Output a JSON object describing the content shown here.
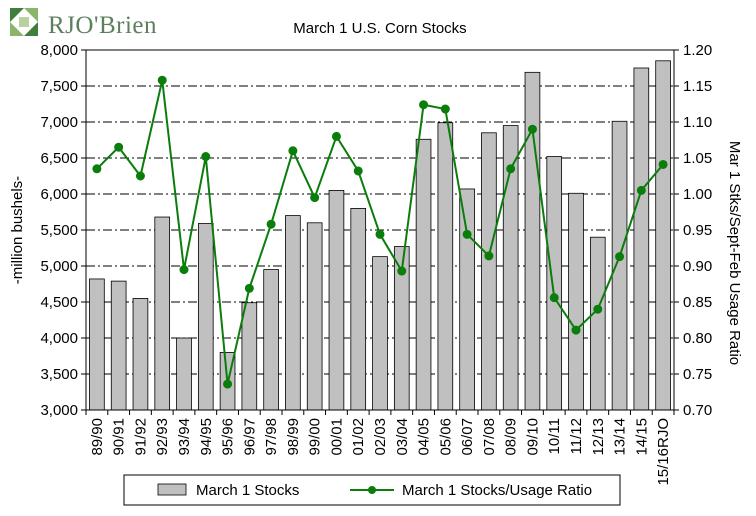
{
  "logo": {
    "name": "RJO'Brien"
  },
  "chart_data": {
    "type": "bar",
    "title": "March 1 U.S. Corn Stocks",
    "ylabel": "-million bushels-",
    "y2label": "Mar 1 Stks/Sept-Feb Usage Ratio",
    "ylim": [
      3000,
      8000
    ],
    "y2lim": [
      0.7,
      1.2
    ],
    "yticks": [
      3000,
      3500,
      4000,
      4500,
      5000,
      5500,
      6000,
      6500,
      7000,
      7500,
      8000
    ],
    "yticklabels": [
      "3,000",
      "3,500",
      "4,000",
      "4,500",
      "5,000",
      "5,500",
      "6,000",
      "6,500",
      "7,000",
      "7,500",
      "8,000"
    ],
    "y2ticks": [
      0.7,
      0.75,
      0.8,
      0.85,
      0.9,
      0.95,
      1.0,
      1.05,
      1.1,
      1.15,
      1.2
    ],
    "y2ticklabels": [
      "0.70",
      "0.75",
      "0.80",
      "0.85",
      "0.90",
      "0.95",
      "1.00",
      "1.05",
      "1.10",
      "1.15",
      "1.20"
    ],
    "grid": "horizontal dash-dot",
    "legend_position": "bottom",
    "categories": [
      "89/90",
      "90/91",
      "91/92",
      "92/93",
      "93/94",
      "94/95",
      "95/96",
      "96/97",
      "97/98",
      "98/99",
      "99/00",
      "00/01",
      "01/02",
      "02/03",
      "03/04",
      "04/05",
      "05/06",
      "06/07",
      "07/08",
      "08/09",
      "09/10",
      "10/11",
      "11/12",
      "12/13",
      "13/14",
      "14/15",
      "15/16RJO"
    ],
    "series": [
      {
        "name": "March 1 Stocks",
        "kind": "bar",
        "axis": "left",
        "color": "#c0c0c0",
        "values": [
          4820,
          4790,
          4550,
          5680,
          4000,
          5590,
          3800,
          4490,
          4950,
          5700,
          5600,
          6050,
          5800,
          5130,
          5270,
          6760,
          6990,
          6070,
          6850,
          6950,
          7690,
          6520,
          6010,
          5400,
          7010,
          7750,
          7850
        ]
      },
      {
        "name": "March 1 Stocks/Usage Ratio",
        "kind": "line",
        "axis": "right",
        "color": "#0b7d0b",
        "values": [
          1.035,
          1.065,
          1.025,
          1.158,
          0.895,
          1.052,
          0.736,
          0.869,
          0.958,
          1.06,
          0.995,
          1.08,
          1.032,
          0.944,
          0.893,
          1.124,
          1.118,
          0.944,
          0.914,
          1.035,
          1.09,
          0.856,
          0.811,
          0.84,
          0.913,
          1.005,
          1.041
        ]
      }
    ]
  }
}
